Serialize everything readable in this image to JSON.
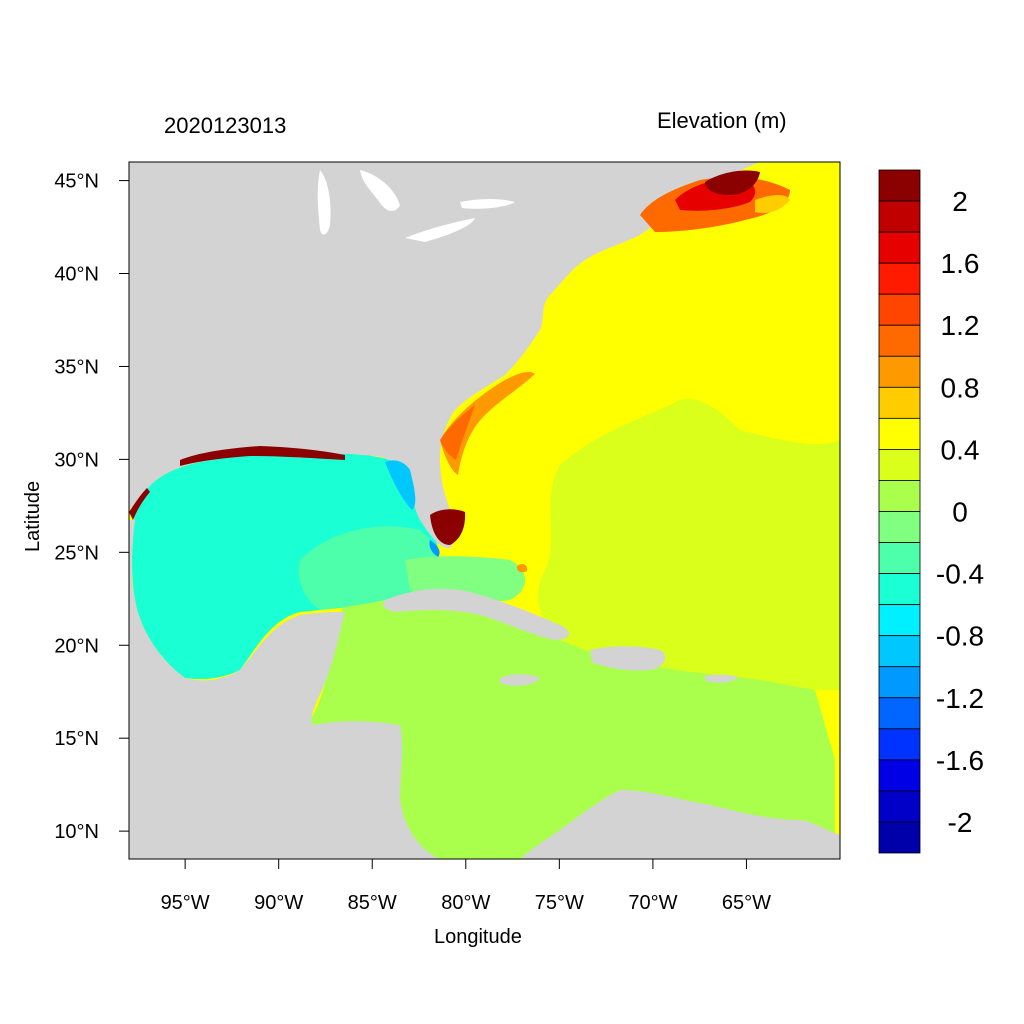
{
  "header": {
    "timestamp": "2020123013",
    "variable": "Elevation (m)"
  },
  "axes": {
    "xlabel": "Longitude",
    "ylabel": "Latitude",
    "xlim": [
      -98,
      -60
    ],
    "ylim": [
      8.5,
      46
    ],
    "xticks": [
      {
        "value": -95,
        "label": "95°W"
      },
      {
        "value": -90,
        "label": "90°W"
      },
      {
        "value": -85,
        "label": "85°W"
      },
      {
        "value": -80,
        "label": "80°W"
      },
      {
        "value": -75,
        "label": "75°W"
      },
      {
        "value": -70,
        "label": "70°W"
      },
      {
        "value": -65,
        "label": "65°W"
      }
    ],
    "yticks": [
      {
        "value": 45,
        "label": "45°N"
      },
      {
        "value": 40,
        "label": "40°N"
      },
      {
        "value": 35,
        "label": "35°N"
      },
      {
        "value": 30,
        "label": "30°N"
      },
      {
        "value": 25,
        "label": "25°N"
      },
      {
        "value": 20,
        "label": "20°N"
      },
      {
        "value": 15,
        "label": "15°N"
      },
      {
        "value": 10,
        "label": "10°N"
      }
    ]
  },
  "colorbar": {
    "levels": [
      {
        "color": "#8b0000"
      },
      {
        "color": "#c00000"
      },
      {
        "color": "#e60000"
      },
      {
        "color": "#ff1a00"
      },
      {
        "color": "#ff4500"
      },
      {
        "color": "#ff6a00"
      },
      {
        "color": "#ff9900"
      },
      {
        "color": "#ffcc00"
      },
      {
        "color": "#ffff00"
      },
      {
        "color": "#d9ff1a"
      },
      {
        "color": "#aaff4d"
      },
      {
        "color": "#80ff80"
      },
      {
        "color": "#4dffaa"
      },
      {
        "color": "#1affd4"
      },
      {
        "color": "#00f0ff"
      },
      {
        "color": "#00c8ff"
      },
      {
        "color": "#0099ff"
      },
      {
        "color": "#0066ff"
      },
      {
        "color": "#0033ff"
      },
      {
        "color": "#0000e6"
      },
      {
        "color": "#0000c8"
      },
      {
        "color": "#0000aa"
      }
    ],
    "tick_labels": [
      "2",
      "1.6",
      "1.2",
      "0.8",
      "0.4",
      "0",
      "-0.4",
      "-0.8",
      "-1.2",
      "-1.6",
      "-2"
    ]
  },
  "colors": {
    "land": "#d3d3d3",
    "lakes": "#ffffff",
    "atlantic": "#ffff00",
    "atlantic_east": "#d9ff1a",
    "caribbean": "#aaff4d",
    "gulf": "#1affd4",
    "gulf_shelf": "#4dffaa",
    "surge_high": "#8b0000"
  }
}
